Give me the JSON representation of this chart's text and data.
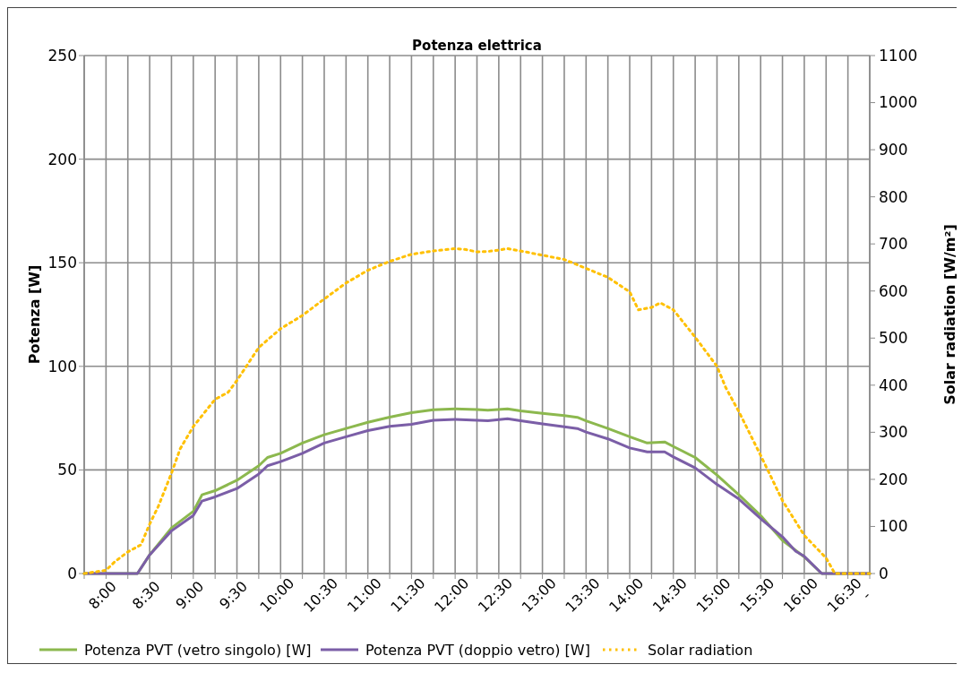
{
  "chart_data": {
    "type": "line",
    "title": "Potenza elettrica",
    "ylabel": "Potenza [W]",
    "y2label": "Solar radiation [W/m²]",
    "xlim": [
      7.75,
      16.75
    ],
    "xticks": [
      {
        "value": 7.75,
        "label": null
      },
      {
        "value": 8,
        "label": "8:00"
      },
      {
        "value": 8.25,
        "label": null
      },
      {
        "value": 8.5,
        "label": "8:30"
      },
      {
        "value": 8.75,
        "label": null
      },
      {
        "value": 9,
        "label": "9:00"
      },
      {
        "value": 9.25,
        "label": null
      },
      {
        "value": 9.5,
        "label": "9:30"
      },
      {
        "value": 9.75,
        "label": null
      },
      {
        "value": 10,
        "label": "10:00"
      },
      {
        "value": 10.25,
        "label": null
      },
      {
        "value": 10.5,
        "label": "10:30"
      },
      {
        "value": 10.75,
        "label": null
      },
      {
        "value": 11,
        "label": "11:00"
      },
      {
        "value": 11.25,
        "label": null
      },
      {
        "value": 11.5,
        "label": "11:30"
      },
      {
        "value": 11.75,
        "label": null
      },
      {
        "value": 12,
        "label": "12:00"
      },
      {
        "value": 12.25,
        "label": null
      },
      {
        "value": 12.5,
        "label": "12:30"
      },
      {
        "value": 12.75,
        "label": null
      },
      {
        "value": 13,
        "label": "13:00"
      },
      {
        "value": 13.25,
        "label": null
      },
      {
        "value": 13.5,
        "label": "13:30"
      },
      {
        "value": 13.75,
        "label": null
      },
      {
        "value": 14,
        "label": "14:00"
      },
      {
        "value": 14.25,
        "label": null
      },
      {
        "value": 14.5,
        "label": "14:30"
      },
      {
        "value": 14.75,
        "label": null
      },
      {
        "value": 15,
        "label": "15:00"
      },
      {
        "value": 15.25,
        "label": null
      },
      {
        "value": 15.5,
        "label": "15:30"
      },
      {
        "value": 15.75,
        "label": null
      },
      {
        "value": 16,
        "label": "16:00"
      },
      {
        "value": 16.25,
        "label": null
      },
      {
        "value": 16.5,
        "label": "16:30"
      },
      {
        "value": 16.75,
        "label": "-"
      }
    ],
    "ylim": [
      0,
      250
    ],
    "yticks": [
      0,
      50,
      100,
      150,
      200,
      250
    ],
    "y2lim": [
      0,
      1100
    ],
    "y2ticks": [
      0,
      100,
      200,
      300,
      400,
      500,
      600,
      700,
      800,
      900,
      1000,
      1100
    ],
    "grid": true,
    "legend": "bottom",
    "series": [
      {
        "name": "Potenza PVT (vetro singolo) [W]",
        "color": "#8cb84e",
        "line_style": "solid",
        "x": [
          7.75,
          8,
          8.25,
          8.36,
          8.5,
          8.75,
          9,
          9.1,
          9.25,
          9.5,
          9.75,
          9.85,
          10,
          10.25,
          10.5,
          10.75,
          11,
          11.25,
          11.5,
          11.75,
          12,
          12.25,
          12.375,
          12.6,
          12.75,
          13,
          13.25,
          13.4,
          13.5,
          13.75,
          14,
          14.2,
          14.4,
          14.5,
          14.75,
          15,
          15.25,
          15.5,
          15.75,
          16,
          16.2,
          16.5,
          16.75
        ],
        "values": [
          0,
          0,
          0,
          0,
          9,
          22,
          30,
          38,
          40,
          45,
          52,
          56,
          58,
          63,
          67,
          70,
          73,
          75.5,
          77.6,
          79,
          79.5,
          79.2,
          78.8,
          79.5,
          78.5,
          77.3,
          76.2,
          75.4,
          73.7,
          70,
          66,
          63,
          63.5,
          61.3,
          56,
          47.5,
          38,
          28,
          16,
          8,
          0,
          0,
          0
        ]
      },
      {
        "name": "Potenza PVT (doppio vetro) [W]",
        "color": "#7b5ea7",
        "line_style": "solid",
        "x": [
          7.75,
          8,
          8.25,
          8.36,
          8.5,
          8.75,
          9,
          9.1,
          9.25,
          9.5,
          9.75,
          9.85,
          10,
          10.25,
          10.5,
          10.75,
          11,
          11.25,
          11.5,
          11.75,
          12,
          12.25,
          12.375,
          12.6,
          12.75,
          13,
          13.25,
          13.4,
          13.5,
          13.75,
          14,
          14.2,
          14.4,
          14.5,
          14.75,
          15,
          15.25,
          15.5,
          15.75,
          15.9,
          16,
          16.2,
          16.5,
          16.75
        ],
        "values": [
          0,
          0,
          0,
          0,
          9,
          20.6,
          28,
          35,
          37,
          41,
          48,
          52,
          54,
          58,
          63,
          66,
          69,
          71,
          72,
          74,
          74.4,
          74,
          73.7,
          74.7,
          73.7,
          72.2,
          70.8,
          70,
          68.3,
          65,
          60.6,
          58.7,
          58.7,
          56.3,
          51,
          43,
          36,
          26.5,
          17.7,
          10.8,
          8.3,
          0,
          0,
          0
        ]
      },
      {
        "name": "Solar radiation",
        "color": "#ffc000",
        "line_style": "dotted",
        "axis": "y2",
        "x": [
          7.75,
          8,
          8.1,
          8.25,
          8.4,
          8.5,
          8.6,
          8.75,
          8.85,
          9,
          9.15,
          9.25,
          9.4,
          9.5,
          9.75,
          10,
          10.25,
          10.5,
          10.75,
          11,
          11.25,
          11.5,
          11.75,
          12,
          12.125,
          12.25,
          12.375,
          12.5,
          12.6,
          12.75,
          13,
          13.25,
          13.5,
          13.75,
          14,
          14.1,
          14.25,
          14.35,
          14.5,
          14.75,
          15,
          15.1,
          15.25,
          15.5,
          15.75,
          16,
          16.25,
          16.35,
          16.5,
          16.75
        ],
        "values": [
          0,
          7,
          25,
          46,
          61,
          105,
          143,
          213,
          265,
          312,
          347,
          370,
          385,
          410,
          480,
          520,
          548,
          583,
          617,
          644,
          663,
          678,
          685,
          690,
          688,
          683,
          684,
          687,
          690,
          685,
          676,
          667,
          648,
          629,
          598,
          560,
          565,
          575,
          560,
          502,
          440,
          395,
          344,
          251,
          155,
          81,
          33,
          0,
          0,
          0
        ]
      }
    ]
  }
}
